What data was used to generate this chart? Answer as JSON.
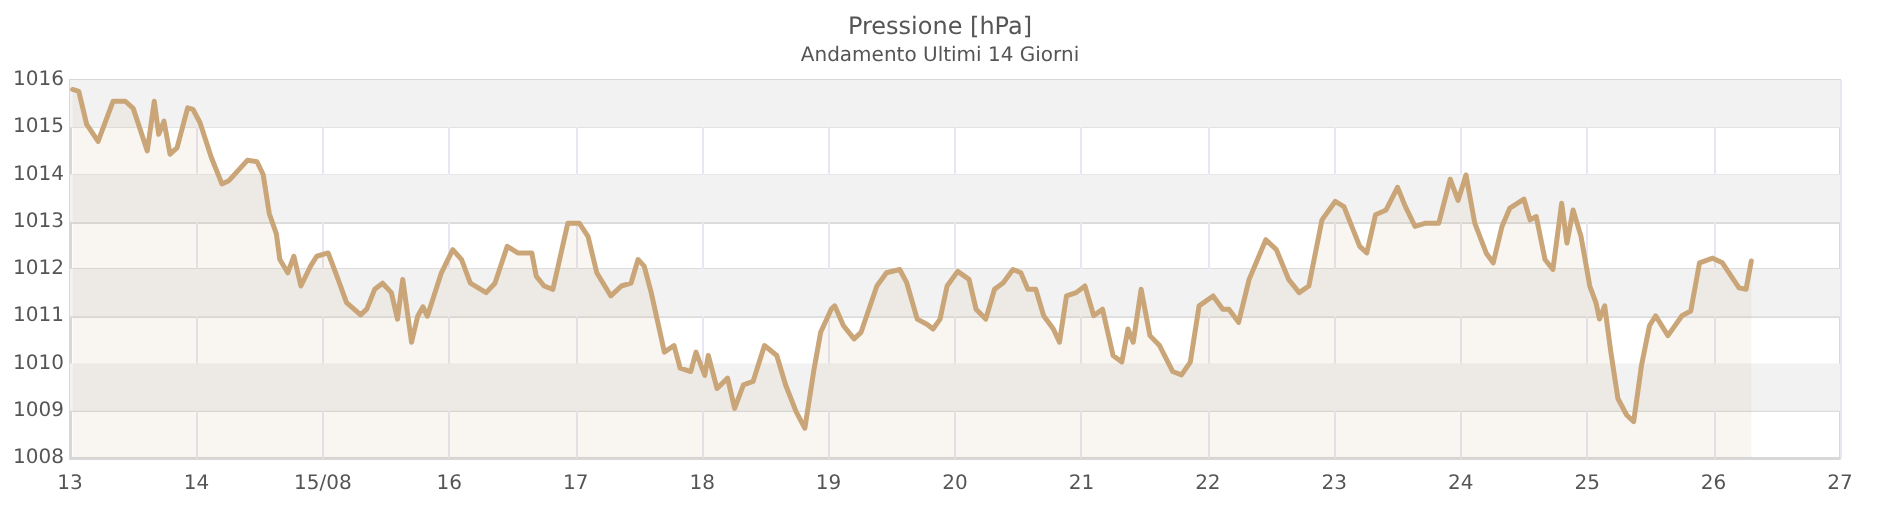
{
  "chart_data": {
    "type": "area",
    "title": "Pressione [hPa]",
    "subtitle": "Andamento Ultimi 14 Giorni",
    "xlim": [
      "--08-13",
      "--08-27"
    ],
    "xticks": [
      {
        "value": "--08-13",
        "label": "13"
      },
      {
        "value": "--08-14",
        "label": "14"
      },
      {
        "value": "--08-15",
        "label": "15/08"
      },
      {
        "value": "--08-16",
        "label": "16"
      },
      {
        "value": "--08-17",
        "label": "17"
      },
      {
        "value": "--08-18",
        "label": "18"
      },
      {
        "value": "--08-19",
        "label": "19"
      },
      {
        "value": "--08-20",
        "label": "20"
      },
      {
        "value": "--08-21",
        "label": "21"
      },
      {
        "value": "--08-22",
        "label": "22"
      },
      {
        "value": "--08-23",
        "label": "23"
      },
      {
        "value": "--08-24",
        "label": "24"
      },
      {
        "value": "--08-25",
        "label": "25"
      },
      {
        "value": "--08-26",
        "label": "26"
      },
      {
        "value": "--08-27",
        "label": "27"
      }
    ],
    "ylim": [
      1008,
      1016
    ],
    "yticks": [
      1008,
      1009,
      1010,
      1011,
      1012,
      1013,
      1014,
      1015,
      1016
    ],
    "grid": true,
    "marker": "none",
    "line_style": "solid",
    "bands": [
      {
        "axis": "y",
        "from": 1009,
        "to": 1010,
        "color": "#f2f2f2"
      },
      {
        "axis": "y",
        "from": 1011,
        "to": 1012,
        "color": "#f2f2f2"
      },
      {
        "axis": "y",
        "from": 1013,
        "to": 1014,
        "color": "#f2f2f2"
      },
      {
        "axis": "y",
        "from": 1015,
        "to": 1016,
        "color": "#f2f2f2"
      }
    ],
    "series": [
      {
        "color": "#c9a578",
        "x": [
          "--08-13T00:30",
          "--08-13T01:40",
          "--08-13T03:10",
          "--08-13T05:20",
          "--08-13T08:10",
          "--08-13T10:30",
          "--08-13T12:00",
          "--08-13T14:40",
          "--08-13T16:00",
          "--08-13T16:50",
          "--08-13T17:50",
          "--08-13T19:00",
          "--08-13T20:20",
          "--08-13T22:20",
          "--08-13T23:20",
          "--08-14T00:40",
          "--08-14T02:50",
          "--08-14T04:50",
          "--08-14T06:10",
          "--08-14T09:40",
          "--08-14T11:30",
          "--08-14T12:40",
          "--08-14T13:50",
          "--08-14T15:10",
          "--08-14T15:50",
          "--08-14T17:20",
          "--08-14T18:30",
          "--08-14T19:50",
          "--08-14T21:40",
          "--08-14T22:50",
          "--08-15T01:00",
          "--08-15T02:40",
          "--08-15T04:30",
          "--08-15T07:10",
          "--08-15T08:20",
          "--08-15T09:50",
          "--08-15T11:20",
          "--08-15T13:00",
          "--08-15T14:10",
          "--08-15T15:10",
          "--08-15T16:50",
          "--08-15T18:00",
          "--08-15T19:00",
          "--08-15T19:50",
          "--08-15T22:30",
          "--08-16T00:40",
          "--08-16T02:20",
          "--08-16T04:00",
          "--08-16T07:00",
          "--08-16T08:40",
          "--08-16T11:00",
          "--08-16T13:00",
          "--08-16T15:40",
          "--08-16T16:30",
          "--08-16T18:00",
          "--08-16T19:40",
          "--08-16T22:30",
          "--08-17T00:40",
          "--08-17T02:20",
          "--08-17T04:00",
          "--08-17T06:40",
          "--08-17T08:40",
          "--08-17T10:30",
          "--08-17T11:50",
          "--08-17T13:00",
          "--08-17T14:20",
          "--08-17T16:50",
          "--08-17T18:40",
          "--08-17T19:50",
          "--08-17T21:50",
          "--08-17T22:50",
          "--08-18T00:30",
          "--08-18T01:10",
          "--08-18T02:50",
          "--08-18T04:50",
          "--08-18T06:10",
          "--08-18T07:50",
          "--08-18T09:40",
          "--08-18T11:50",
          "--08-18T14:10",
          "--08-18T15:50",
          "--08-18T17:50",
          "--08-18T19:30",
          "--08-18T21:10",
          "--08-18T22:30",
          "--08-19T00:30",
          "--08-19T01:10",
          "--08-19T02:50",
          "--08-19T04:50",
          "--08-19T06:10",
          "--08-19T09:10",
          "--08-19T11:00",
          "--08-19T13:30",
          "--08-19T14:50",
          "--08-19T16:50",
          "--08-19T18:40",
          "--08-19T19:50",
          "--08-19T21:10",
          "--08-19T22:30",
          "--08-20T00:30",
          "--08-20T02:40",
          "--08-20T04:00",
          "--08-20T05:50",
          "--08-20T07:30",
          "--08-20T09:10",
          "--08-20T11:00",
          "--08-20T12:30",
          "--08-20T13:50",
          "--08-20T15:20",
          "--08-20T16:50",
          "--08-20T18:40",
          "--08-20T19:50",
          "--08-20T21:10",
          "--08-20T23:00",
          "--08-21T00:40",
          "--08-21T02:20",
          "--08-21T04:00",
          "--08-21T06:00",
          "--08-21T07:40",
          "--08-21T08:50",
          "--08-21T09:50",
          "--08-21T11:20",
          "--08-21T13:00",
          "--08-21T14:50",
          "--08-21T17:20",
          "--08-21T19:00",
          "--08-21T20:40",
          "--08-21T22:20",
          "--08-22T01:00",
          "--08-22T02:50",
          "--08-22T04:00",
          "--08-22T05:50",
          "--08-22T07:50",
          "--08-22T11:00",
          "--08-22T13:00",
          "--08-22T15:20",
          "--08-22T17:20",
          "--08-22T19:10",
          "--08-22T21:40",
          "--08-23T00:10",
          "--08-23T01:50",
          "--08-23T04:50",
          "--08-23T06:10",
          "--08-23T07:50",
          "--08-23T09:50",
          "--08-23T12:00",
          "--08-23T13:30",
          "--08-23T15:20",
          "--08-23T17:20",
          "--08-23T19:50",
          "--08-23T22:00",
          "--08-23T23:30",
          "--08-24T01:00",
          "--08-24T02:40",
          "--08-24T04:50",
          "--08-24T06:10",
          "--08-24T07:50",
          "--08-24T09:20",
          "--08-24T12:00",
          "--08-24T13:10",
          "--08-24T14:20",
          "--08-24T16:00",
          "--08-24T17:30",
          "--08-24T19:10",
          "--08-24T20:10",
          "--08-24T21:20",
          "--08-24T22:50",
          "--08-25T00:30",
          "--08-25T01:40",
          "--08-25T02:20",
          "--08-25T03:20",
          "--08-25T04:30",
          "--08-25T05:50",
          "--08-25T07:30",
          "--08-25T08:50",
          "--08-25T10:20",
          "--08-25T11:50",
          "--08-25T13:00",
          "--08-25T15:20",
          "--08-25T18:00",
          "--08-25T19:40",
          "--08-25T21:20",
          "--08-25T23:50",
          "--08-26T01:40",
          "--08-26T04:50",
          "--08-26T06:10",
          "--08-26T07:10"
        ],
        "values": [
          1015.8,
          1015.76,
          1015.06,
          1014.7,
          1015.55,
          1015.55,
          1015.4,
          1014.5,
          1015.55,
          1014.85,
          1015.13,
          1014.43,
          1014.57,
          1015.41,
          1015.38,
          1015.1,
          1014.36,
          1013.8,
          1013.87,
          1014.3,
          1014.27,
          1014.0,
          1013.17,
          1012.75,
          1012.2,
          1011.92,
          1012.27,
          1011.64,
          1012.06,
          1012.27,
          1012.34,
          1011.85,
          1011.29,
          1011.03,
          1011.15,
          1011.57,
          1011.7,
          1011.5,
          1010.94,
          1011.78,
          1010.45,
          1011.0,
          1011.2,
          1011.0,
          1011.92,
          1012.41,
          1012.2,
          1011.7,
          1011.5,
          1011.7,
          1012.48,
          1012.34,
          1012.34,
          1011.85,
          1011.64,
          1011.57,
          1012.97,
          1012.97,
          1012.69,
          1011.92,
          1011.43,
          1011.64,
          1011.7,
          1012.2,
          1012.06,
          1011.5,
          1010.24,
          1010.38,
          1009.9,
          1009.83,
          1010.24,
          1009.75,
          1010.17,
          1009.47,
          1009.69,
          1009.05,
          1009.55,
          1009.62,
          1010.38,
          1010.17,
          1009.55,
          1008.98,
          1008.63,
          1009.83,
          1010.66,
          1011.15,
          1011.22,
          1010.8,
          1010.52,
          1010.66,
          1011.64,
          1011.92,
          1011.99,
          1011.71,
          1010.94,
          1010.83,
          1010.73,
          1010.94,
          1011.64,
          1011.95,
          1011.78,
          1011.15,
          1010.94,
          1011.57,
          1011.71,
          1011.99,
          1011.92,
          1011.57,
          1011.57,
          1011.01,
          1010.73,
          1010.45,
          1011.43,
          1011.5,
          1011.64,
          1011.01,
          1011.15,
          1010.17,
          1010.03,
          1010.73,
          1010.45,
          1011.57,
          1010.59,
          1010.38,
          1009.83,
          1009.76,
          1010.03,
          1011.22,
          1011.43,
          1011.15,
          1011.15,
          1010.87,
          1011.78,
          1012.62,
          1012.41,
          1011.78,
          1011.5,
          1011.64,
          1013.04,
          1013.43,
          1013.32,
          1012.48,
          1012.34,
          1013.15,
          1013.25,
          1013.73,
          1013.32,
          1012.9,
          1012.97,
          1012.97,
          1013.9,
          1013.45,
          1013.99,
          1012.97,
          1012.34,
          1012.13,
          1012.9,
          1013.29,
          1013.48,
          1013.04,
          1013.11,
          1012.2,
          1011.99,
          1013.39,
          1012.55,
          1013.25,
          1012.69,
          1011.64,
          1011.29,
          1010.94,
          1011.22,
          1010.24,
          1009.26,
          1008.91,
          1008.77,
          1009.97,
          1010.8,
          1011.01,
          1010.59,
          1011.01,
          1011.11,
          1012.13,
          1012.23,
          1012.13,
          1011.6,
          1011.57,
          1012.17
        ]
      }
    ]
  }
}
